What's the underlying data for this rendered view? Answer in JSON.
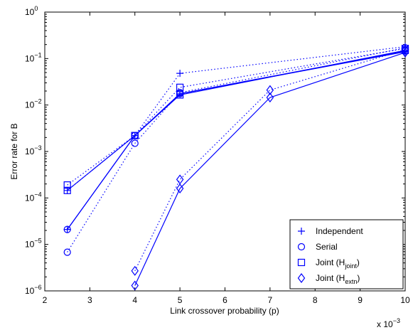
{
  "chart_data": {
    "type": "line",
    "xlabel": "Link crossover probability (p)",
    "ylabel": "Error rate for B",
    "x_multiplier_label": {
      "base": "x 10",
      "exponent": "−3"
    },
    "xlim": [
      2,
      10
    ],
    "ylim": [
      1e-06,
      1
    ],
    "yscale": "log",
    "grid": false,
    "legend_position": "bottom-right",
    "x_ticks": [
      {
        "value": 2,
        "label": "2"
      },
      {
        "value": 3,
        "label": "3"
      },
      {
        "value": 4,
        "label": "4"
      },
      {
        "value": 5,
        "label": "5"
      },
      {
        "value": 6,
        "label": "6"
      },
      {
        "value": 7,
        "label": "7"
      },
      {
        "value": 8,
        "label": "8"
      },
      {
        "value": 9,
        "label": "9"
      },
      {
        "value": 10,
        "label": "10"
      }
    ],
    "y_ticks": [
      {
        "value": 1e-06,
        "base": "10",
        "exp": "−6"
      },
      {
        "value": 1e-05,
        "base": "10",
        "exp": "−5"
      },
      {
        "value": 0.0001,
        "base": "10",
        "exp": "−4"
      },
      {
        "value": 0.001,
        "base": "10",
        "exp": "−3"
      },
      {
        "value": 0.01,
        "base": "10",
        "exp": "−2"
      },
      {
        "value": 0.1,
        "base": "10",
        "exp": "−1"
      },
      {
        "value": 1,
        "base": "10",
        "exp": "0"
      }
    ],
    "color": "#0000ff",
    "series": [
      {
        "name": "Independent",
        "marker": "plus",
        "style": "dotted",
        "x": [
          2.5,
          4,
          5,
          10
        ],
        "y": [
          0.000145,
          0.0022,
          0.048,
          0.18
        ]
      },
      {
        "name": "Independent",
        "marker": "plus",
        "style": "solid",
        "x": [
          2.5,
          4,
          5,
          10
        ],
        "y": [
          2.1e-05,
          0.0022,
          0.0175,
          0.14
        ]
      },
      {
        "name": "Serial",
        "marker": "circle",
        "style": "dotted",
        "x": [
          2.5,
          4,
          5,
          10
        ],
        "y": [
          6.8e-06,
          0.0015,
          0.0185,
          0.17
        ]
      },
      {
        "name": "Serial",
        "marker": "circle",
        "style": "solid",
        "x": [
          2.5,
          4,
          5,
          10
        ],
        "y": [
          2.1e-05,
          0.0022,
          0.0175,
          0.145
        ]
      },
      {
        "name": "Joint (H_joint)",
        "marker": "square",
        "style": "dotted",
        "x": [
          2.5,
          4,
          5,
          10
        ],
        "y": [
          0.00019,
          0.0022,
          0.024,
          0.165
        ]
      },
      {
        "name": "Joint (H_joint)",
        "marker": "square",
        "style": "solid",
        "x": [
          2.5,
          4,
          5,
          10
        ],
        "y": [
          0.000145,
          0.0022,
          0.0165,
          0.15
        ]
      },
      {
        "name": "Joint (H_extn)",
        "marker": "diamond",
        "style": "dotted",
        "x": [
          4,
          5,
          7,
          10
        ],
        "y": [
          2.7e-06,
          0.00025,
          0.021,
          0.155
        ]
      },
      {
        "name": "Joint (H_extn)",
        "marker": "diamond",
        "style": "solid",
        "x": [
          4,
          5,
          7,
          10
        ],
        "y": [
          1.3e-06,
          0.00016,
          0.0145,
          0.135
        ]
      }
    ],
    "legend": [
      {
        "marker": "plus",
        "base": "Independent",
        "sub": "",
        "suffix": ""
      },
      {
        "marker": "circle",
        "base": "Serial",
        "sub": "",
        "suffix": ""
      },
      {
        "marker": "square",
        "base": "Joint (H",
        "sub": "joint",
        "suffix": ")"
      },
      {
        "marker": "diamond",
        "base": "Joint (H",
        "sub": "extn",
        "suffix": ")"
      }
    ]
  }
}
